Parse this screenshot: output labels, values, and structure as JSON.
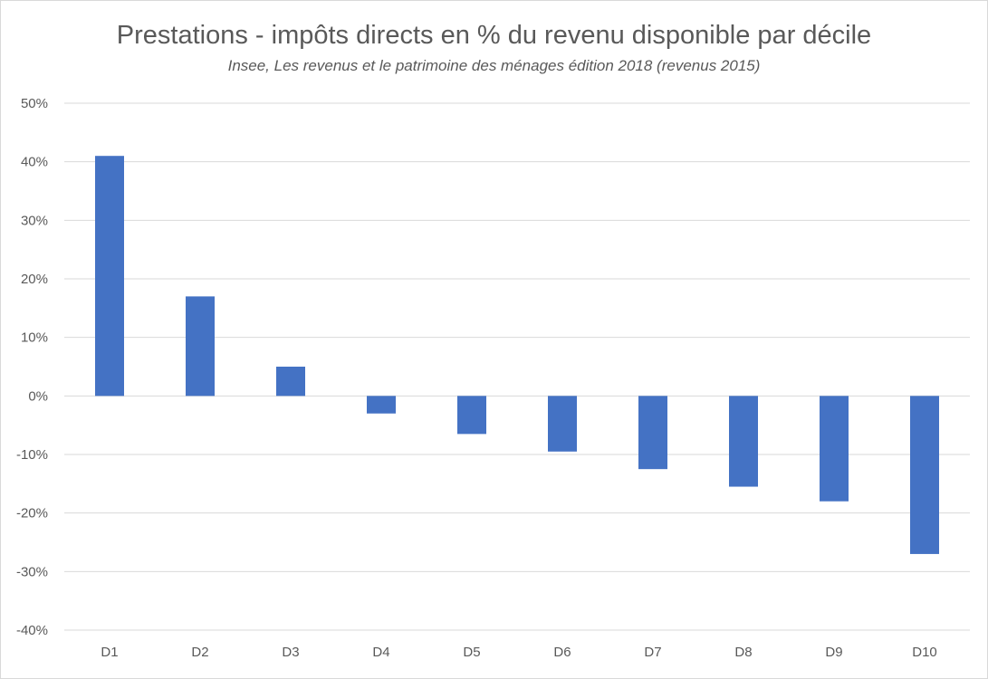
{
  "chart_data": {
    "type": "bar",
    "title": "Prestations - impôts directs en % du revenu disponible par décile",
    "subtitle": "Insee, Les revenus et le patrimoine des ménages édition 2018 (revenus 2015)",
    "xlabel": "",
    "ylabel": "",
    "categories": [
      "D1",
      "D2",
      "D3",
      "D4",
      "D5",
      "D6",
      "D7",
      "D8",
      "D9",
      "D10"
    ],
    "values": [
      41,
      17,
      5,
      -3,
      -6.5,
      -9.5,
      -12.5,
      -15.5,
      -18,
      -27
    ],
    "ylim": [
      -40,
      50
    ],
    "yticks": [
      50,
      40,
      30,
      20,
      10,
      0,
      -10,
      -20,
      -30,
      -40
    ],
    "ytick_labels": [
      "50%",
      "40%",
      "30%",
      "20%",
      "10%",
      "0%",
      "-10%",
      "-20%",
      "-30%",
      "-40%"
    ],
    "grid": true,
    "legend": "none",
    "bar_color": "#4472c4",
    "grid_color": "#d9d9d9"
  }
}
